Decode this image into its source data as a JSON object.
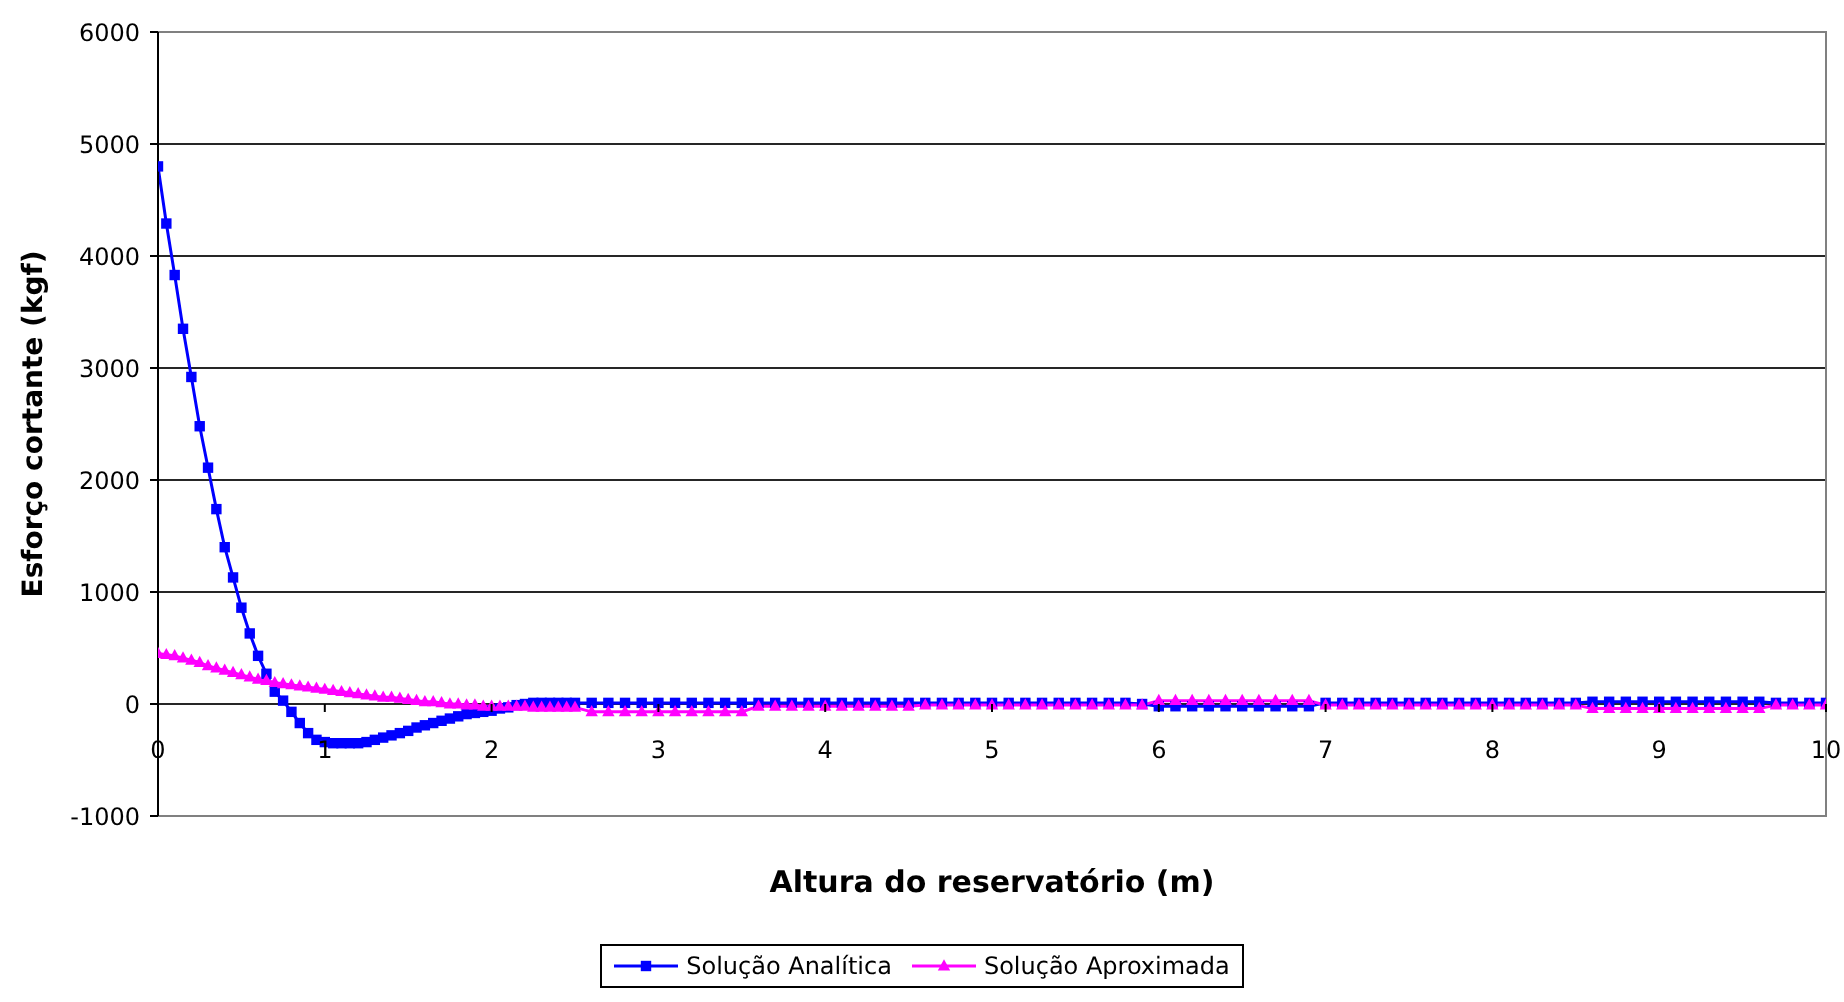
{
  "chart_data": {
    "type": "line",
    "xlabel": "Altura do reservatório (m)",
    "ylabel": "Esforço cortante (kgf)",
    "x": [
      0,
      0.05,
      0.1,
      0.15,
      0.2,
      0.25,
      0.3,
      0.35,
      0.4,
      0.45,
      0.5,
      0.55,
      0.6,
      0.65,
      0.7,
      0.75,
      0.8,
      0.85,
      0.9,
      0.95,
      1,
      1.05,
      1.1,
      1.15,
      1.2,
      1.25,
      1.3,
      1.35,
      1.4,
      1.45,
      1.5,
      1.55,
      1.6,
      1.65,
      1.7,
      1.75,
      1.8,
      1.85,
      1.9,
      1.95,
      2,
      2.05,
      2.1,
      2.15,
      2.2,
      2.25,
      2.3,
      2.35,
      2.4,
      2.45,
      2.5,
      2.6,
      2.7,
      2.8,
      2.9,
      3,
      3.1,
      3.2,
      3.3,
      3.4,
      3.5,
      3.6,
      3.7,
      3.8,
      3.9,
      4,
      4.1,
      4.2,
      4.3,
      4.4,
      4.5,
      4.6,
      4.7,
      4.8,
      4.9,
      5,
      5.1,
      5.2,
      5.3,
      5.4,
      5.5,
      5.6,
      5.7,
      5.8,
      5.9,
      6,
      6.1,
      6.2,
      6.3,
      6.4,
      6.5,
      6.6,
      6.7,
      6.8,
      6.9,
      7,
      7.1,
      7.2,
      7.3,
      7.4,
      7.5,
      7.6,
      7.7,
      7.8,
      7.9,
      8,
      8.1,
      8.2,
      8.3,
      8.4,
      8.5,
      8.6,
      8.7,
      8.8,
      8.9,
      9,
      9.1,
      9.2,
      9.3,
      9.4,
      9.5,
      9.6,
      9.7,
      9.8,
      9.9,
      10
    ],
    "series": [
      {
        "name": "Solução Analítica",
        "color": "#0000ff",
        "marker": "square",
        "values": [
          4800,
          4290,
          3830,
          3350,
          2920,
          2480,
          2110,
          1740,
          1400,
          1130,
          860,
          630,
          430,
          270,
          110,
          30,
          -70,
          -170,
          -260,
          -320,
          -340,
          -350,
          -350,
          -350,
          -350,
          -340,
          -320,
          -300,
          -280,
          -260,
          -240,
          -210,
          -190,
          -170,
          -150,
          -130,
          -110,
          -90,
          -80,
          -70,
          -60,
          -40,
          -30,
          -10,
          0,
          10,
          10,
          10,
          10,
          10,
          10,
          10,
          10,
          10,
          10,
          10,
          10,
          10,
          10,
          10,
          10,
          10,
          10,
          10,
          10,
          10,
          10,
          10,
          10,
          10,
          10,
          10,
          10,
          10,
          10,
          10,
          10,
          10,
          10,
          10,
          10,
          10,
          10,
          10,
          0,
          -20,
          -20,
          -20,
          -20,
          -20,
          -20,
          -20,
          -20,
          -20,
          -20,
          10,
          10,
          10,
          10,
          10,
          10,
          10,
          10,
          10,
          10,
          10,
          10,
          10,
          10,
          10,
          10,
          20,
          20,
          20,
          20,
          20,
          20,
          20,
          20,
          20,
          20,
          20,
          10,
          10,
          10,
          10
        ]
      },
      {
        "name": "Solução Aproximada",
        "color": "#ff00ff",
        "marker": "triangle",
        "values": [
          450,
          440,
          430,
          410,
          390,
          370,
          340,
          320,
          300,
          280,
          260,
          240,
          220,
          210,
          190,
          180,
          170,
          160,
          150,
          140,
          130,
          120,
          110,
          100,
          90,
          80,
          70,
          60,
          60,
          50,
          40,
          30,
          20,
          20,
          10,
          0,
          0,
          -10,
          -10,
          -20,
          -20,
          -20,
          -20,
          -20,
          -20,
          -30,
          -30,
          -30,
          -30,
          -30,
          -30,
          -70,
          -70,
          -70,
          -70,
          -70,
          -70,
          -70,
          -70,
          -70,
          -70,
          -20,
          -20,
          -20,
          -20,
          -20,
          -20,
          -20,
          -20,
          -20,
          -20,
          -10,
          -10,
          -10,
          -10,
          -10,
          -10,
          -10,
          -10,
          -10,
          -10,
          -10,
          -10,
          -10,
          -10,
          30,
          30,
          30,
          30,
          30,
          30,
          30,
          30,
          30,
          30,
          -10,
          -10,
          -10,
          -10,
          -10,
          -10,
          -10,
          -10,
          -10,
          -10,
          -10,
          -10,
          -10,
          -10,
          -10,
          -10,
          -40,
          -40,
          -40,
          -40,
          -40,
          -40,
          -40,
          -40,
          -40,
          -40,
          -40,
          -10,
          -10,
          -10,
          -10
        ]
      }
    ],
    "xlim": [
      0,
      10
    ],
    "xticks": [
      0,
      1,
      2,
      3,
      4,
      5,
      6,
      7,
      8,
      9,
      10
    ],
    "ylim": [
      -1000,
      6000
    ],
    "yticks": [
      -1000,
      0,
      1000,
      2000,
      3000,
      4000,
      5000,
      6000
    ],
    "grid": "y",
    "legend": "bottom"
  }
}
